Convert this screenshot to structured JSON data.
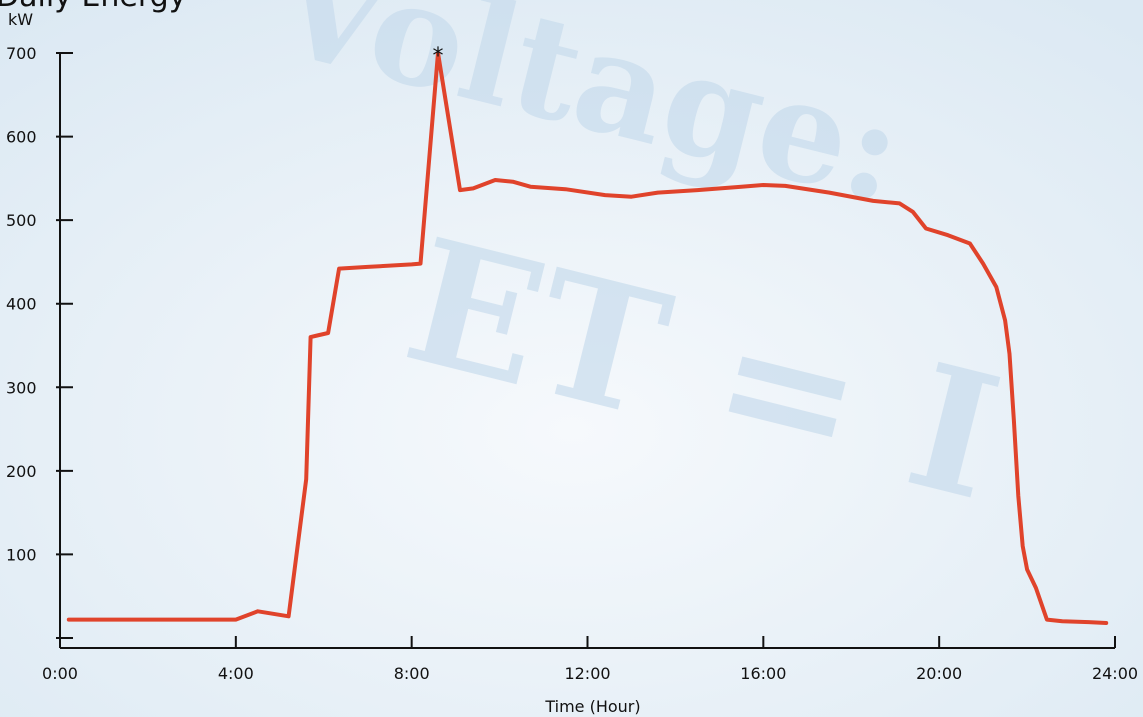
{
  "background": {
    "watermark_line1": "Voltage:",
    "watermark_line2": "ET = I"
  },
  "chart_data": {
    "type": "line",
    "title": "Daily Energy",
    "ylabel": "kW",
    "xlabel": "Time (Hour)",
    "xlim": [
      0,
      24
    ],
    "ylim": [
      0,
      700
    ],
    "x_ticks": [
      0,
      4,
      8,
      12,
      16,
      20,
      24
    ],
    "x_tick_labels": [
      "0:00",
      "4:00",
      "8:00",
      "12:00",
      "16:00",
      "20:00",
      "24:00"
    ],
    "y_ticks": [
      0,
      100,
      200,
      300,
      400,
      500,
      600,
      700
    ],
    "y_tick_labels": [
      "",
      "100",
      "200",
      "300",
      "400",
      "500",
      "600",
      "700"
    ],
    "line_color": "#e0432b",
    "peak_marker": "*",
    "peak_marker_at": [
      8.6,
      700
    ],
    "series": [
      {
        "x": [
          0.2,
          1.0,
          2.0,
          3.0,
          3.6,
          4.0,
          4.5,
          5.2,
          5.6,
          5.7,
          5.85,
          6.1,
          6.35,
          7.0,
          8.0,
          8.2,
          8.6,
          9.1,
          9.4,
          9.9,
          10.3,
          10.7,
          11.5,
          12.4,
          13.0,
          13.6,
          14.5,
          15.5,
          16.0,
          16.5,
          17.5,
          18.5,
          19.1,
          19.4,
          19.7,
          20.2,
          20.7,
          21.0,
          21.3,
          21.5,
          21.6,
          21.7,
          21.8,
          21.9,
          22.0,
          22.2,
          22.45,
          22.8,
          23.4,
          23.8
        ],
        "y": [
          22,
          22,
          22,
          22,
          22,
          22,
          32,
          26,
          190,
          360,
          362,
          365,
          442,
          444,
          447,
          448,
          700,
          536,
          538,
          548,
          546,
          540,
          537,
          530,
          528,
          533,
          536,
          540,
          542,
          541,
          533,
          523,
          520,
          510,
          490,
          482,
          472,
          448,
          420,
          380,
          340,
          260,
          170,
          110,
          82,
          60,
          22,
          20,
          19,
          18
        ]
      }
    ]
  }
}
